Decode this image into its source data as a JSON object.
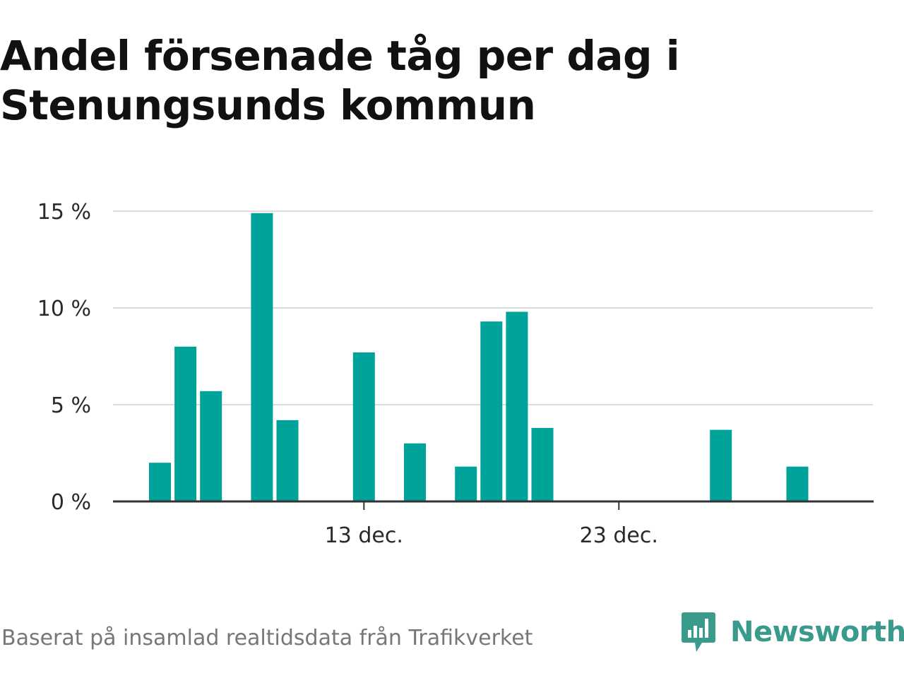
{
  "chart_data": {
    "type": "bar",
    "title_lines": [
      "Andel försenade tåg per dag i",
      "Stenungsunds kommun"
    ],
    "x_ticks": [
      {
        "label": "13 dec.",
        "day": 13
      },
      {
        "label": "23 dec.",
        "day": 23
      }
    ],
    "y_ticks": [
      {
        "label": "0 %",
        "value": 0
      },
      {
        "label": "5 %",
        "value": 5
      },
      {
        "label": "10 %",
        "value": 10
      },
      {
        "label": "15 %",
        "value": 15
      }
    ],
    "ylim": [
      0,
      15
    ],
    "xlim": [
      4,
      2
    ],
    "grid": true,
    "bar_color": "#00a39a",
    "series": [
      {
        "values": [
          {
            "day": 5,
            "value": 2.0
          },
          {
            "day": 6,
            "value": 8.0
          },
          {
            "day": 7,
            "value": 5.7
          },
          {
            "day": 9,
            "value": 14.9
          },
          {
            "day": 10,
            "value": 4.2
          },
          {
            "day": 13,
            "value": 7.7
          },
          {
            "day": 15,
            "value": 3.0
          },
          {
            "day": 17,
            "value": 1.8
          },
          {
            "day": 18,
            "value": 9.3
          },
          {
            "day": 19,
            "value": 9.8
          },
          {
            "day": 20,
            "value": 3.8
          },
          {
            "day": 27,
            "value": 3.7
          },
          {
            "day": 30,
            "value": 1.8
          }
        ]
      }
    ]
  },
  "footer": {
    "source": "Baserat på insamlad realtidsdata från Trafikverket"
  },
  "brand": {
    "name": "Newsworthy",
    "icon": "newsworthy-bar-chart-icon",
    "color": "#3a9a8c"
  }
}
